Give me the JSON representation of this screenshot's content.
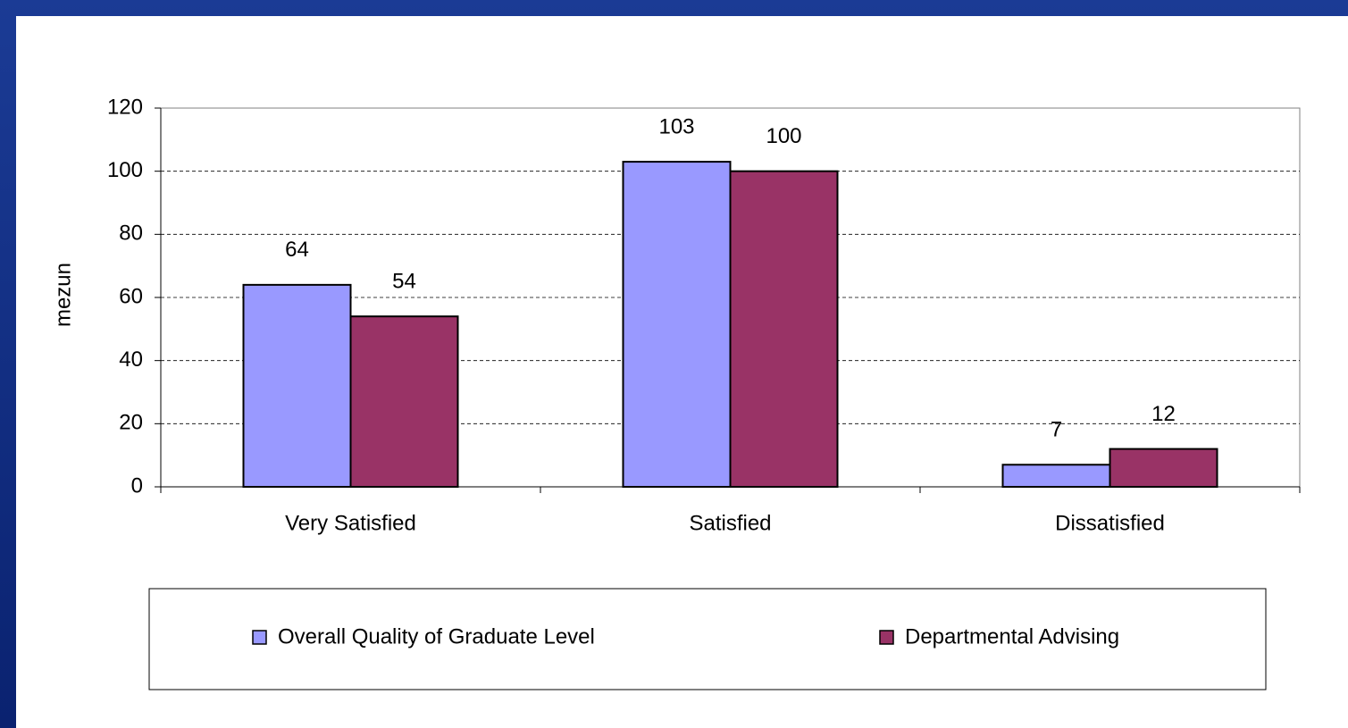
{
  "chart_data": {
    "type": "bar",
    "y_label": "mezun",
    "categories": [
      "Very Satisfied",
      "Satisfied",
      "Dissatisfied"
    ],
    "series": [
      {
        "name": "Overall Quality of Graduate Level",
        "color": "#9999ff",
        "values": [
          64,
          103,
          7
        ]
      },
      {
        "name": "Departmental Advising",
        "color": "#993366",
        "values": [
          54,
          100,
          12
        ]
      }
    ],
    "ylim": [
      0,
      120
    ],
    "yticks": [
      0,
      20,
      40,
      60,
      80,
      100,
      120
    ],
    "grid": true,
    "legend": "bottom",
    "data_labels": true
  }
}
